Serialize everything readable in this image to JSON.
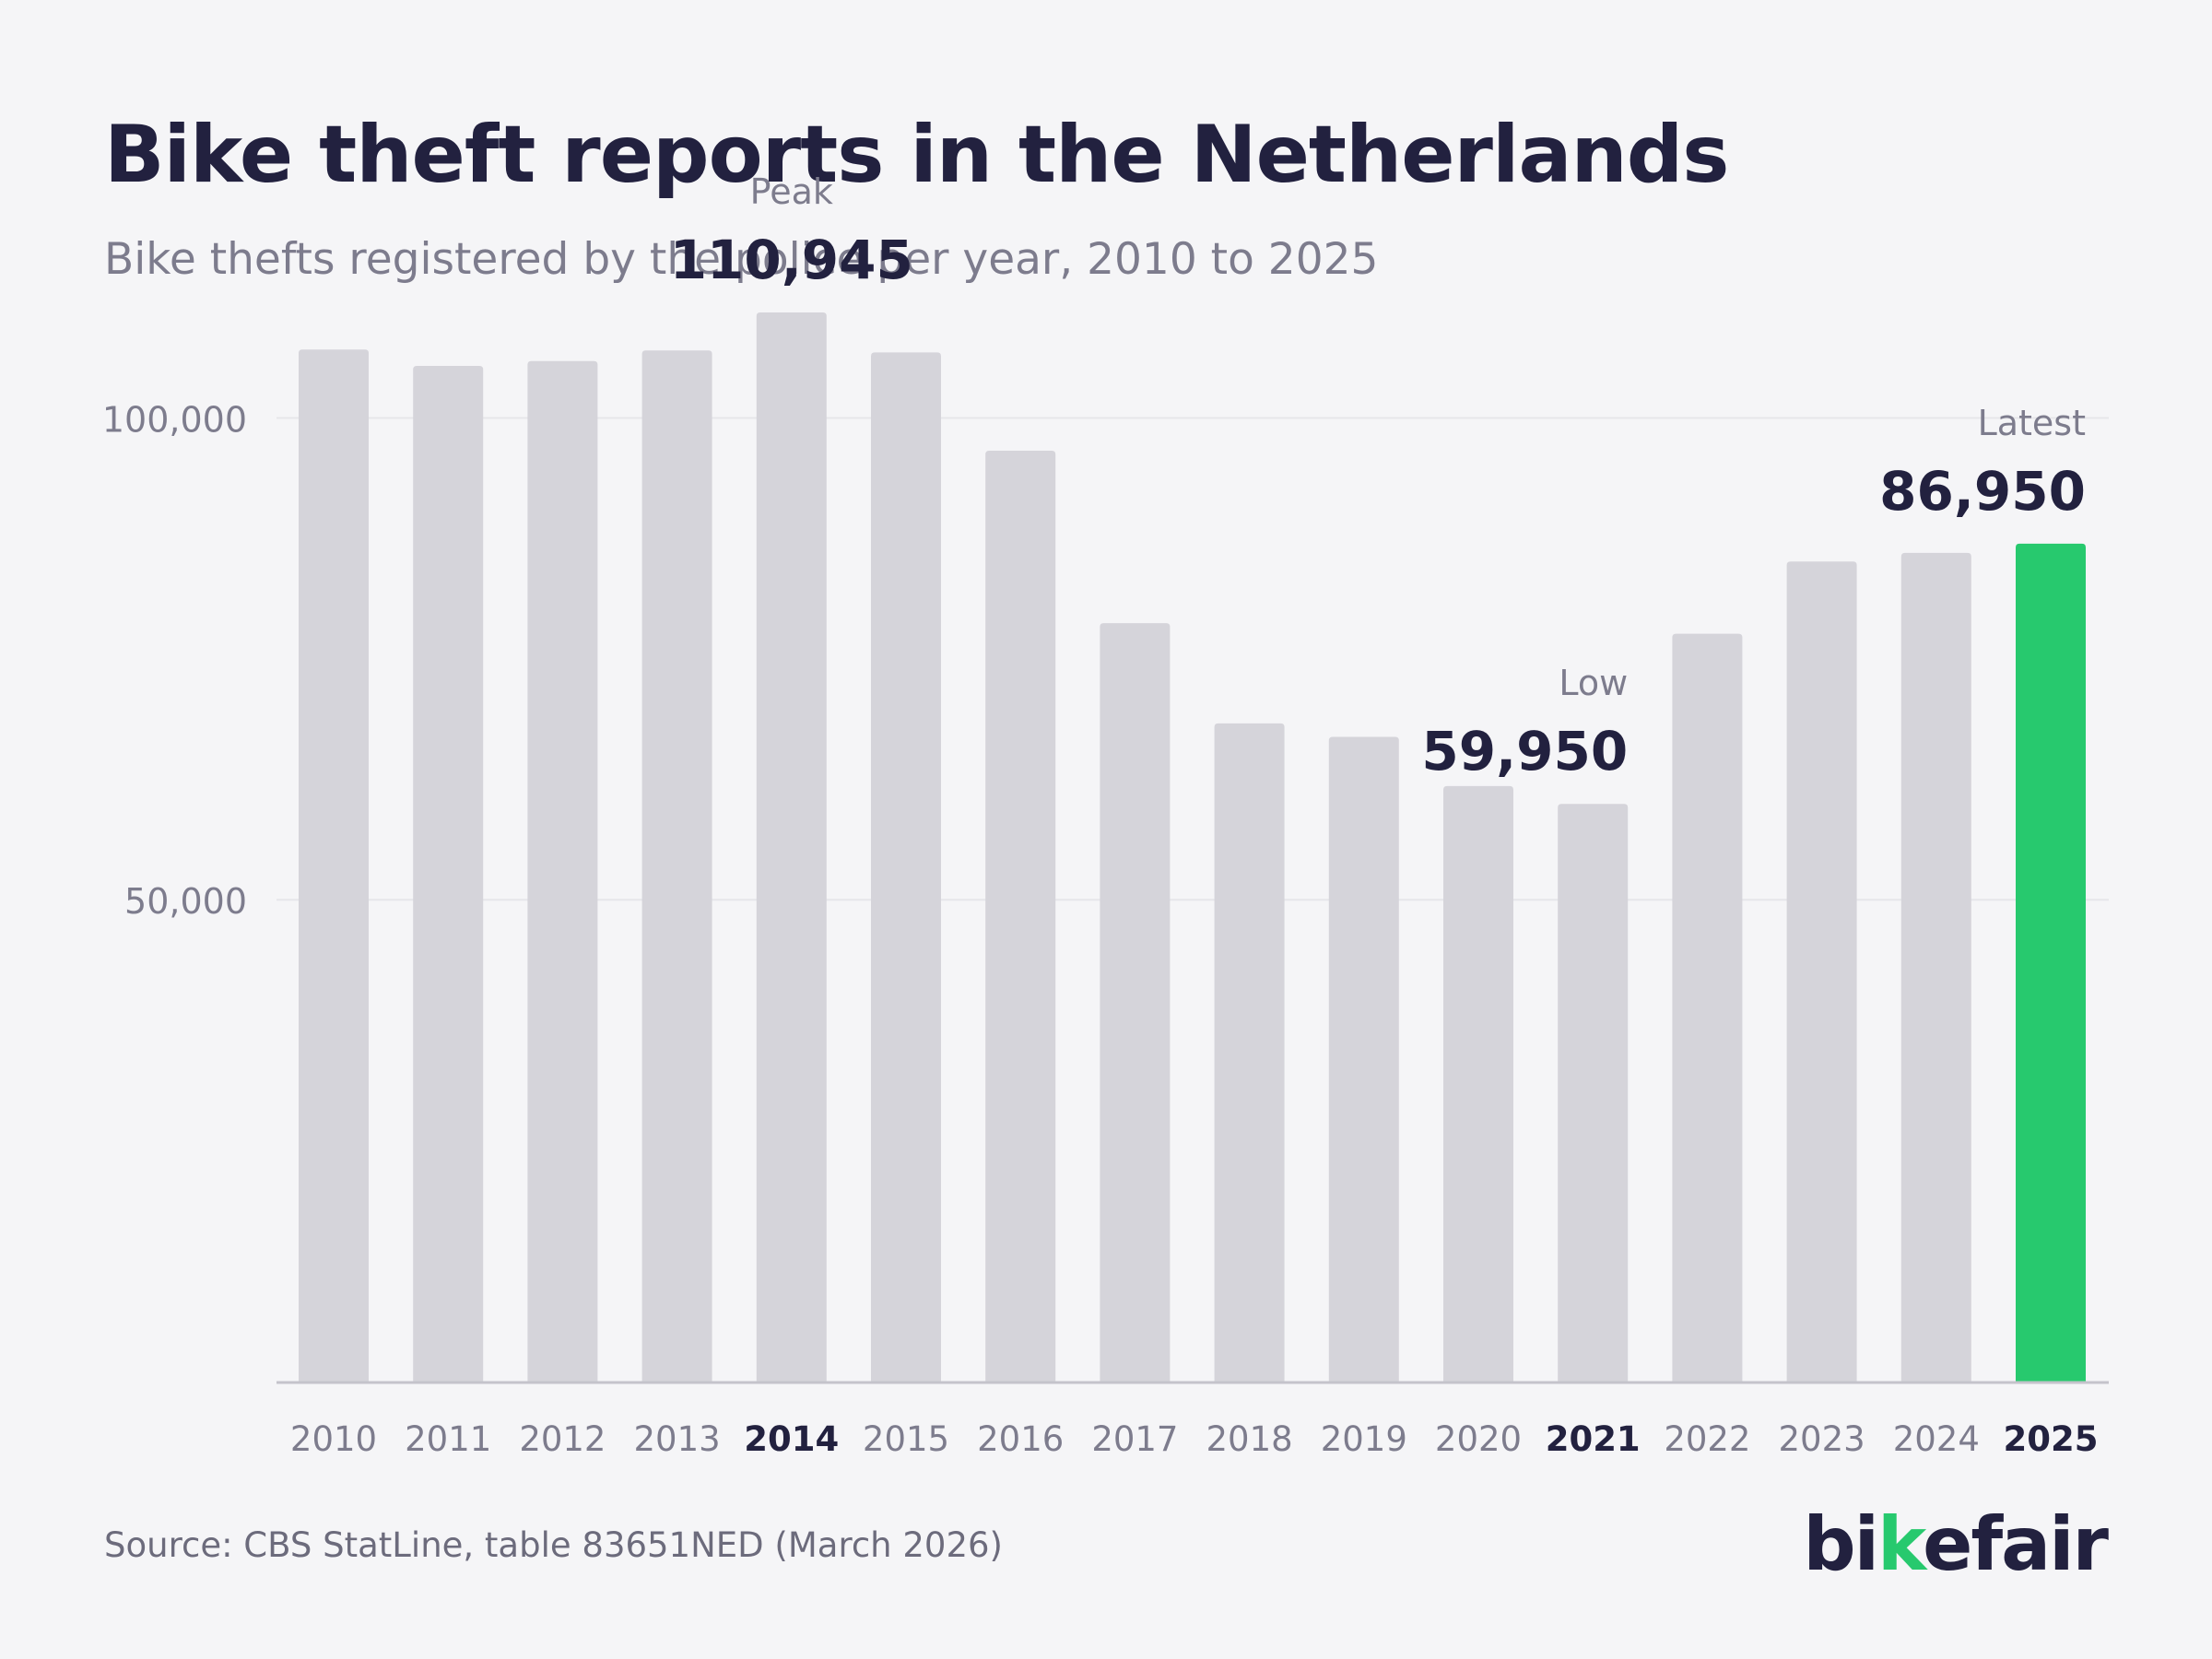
{
  "title": "Bike theft reports in the Netherlands",
  "subtitle": "Bike thefts registered by the police per year, 2010 to 2025",
  "source": "Source: CBS StatLine, table 83651NED (March 2026)",
  "logo": {
    "part1": "bi",
    "part2": "k",
    "part3": "efair"
  },
  "colors": {
    "bar": "#d5d4da",
    "highlight": "#27c96e",
    "text_dark": "#22213f",
    "text_muted": "#7d7c8d",
    "grid": "#e6e6ea",
    "baseline": "#c4c3cb"
  },
  "chart_data": {
    "type": "bar",
    "categories": [
      "2010",
      "2011",
      "2012",
      "2013",
      "2014",
      "2015",
      "2016",
      "2017",
      "2018",
      "2019",
      "2020",
      "2021",
      "2022",
      "2023",
      "2024",
      "2025"
    ],
    "values": [
      107100,
      105400,
      105900,
      107000,
      110945,
      106800,
      96600,
      78700,
      68300,
      66900,
      61800,
      59950,
      77600,
      85100,
      86000,
      86950
    ],
    "ylim": [
      0,
      112000
    ],
    "yticks": [
      {
        "value": 50000,
        "label": "50,000"
      },
      {
        "value": 100000,
        "label": "100,000"
      }
    ],
    "highlight_index": 15,
    "bold_categories": [
      "2014",
      "2021",
      "2025"
    ],
    "grid": true,
    "annotations": [
      {
        "index": 4,
        "label": "Peak",
        "value_text": "110,945",
        "align": "center"
      },
      {
        "index": 11,
        "label": "Low",
        "value_text": "59,950",
        "align": "right"
      },
      {
        "index": 15,
        "label": "Latest",
        "value_text": "86,950",
        "align": "right"
      }
    ]
  }
}
